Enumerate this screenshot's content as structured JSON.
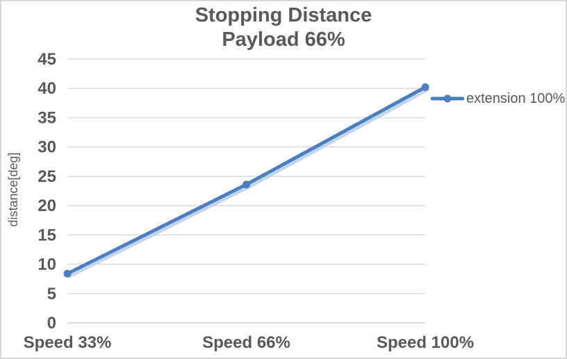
{
  "chart": {
    "title_line1": "Stopping Distance",
    "title_line2": "Payload 66%",
    "y_axis_title": "distance[deg]",
    "legend": {
      "label": "extension 100%"
    }
  },
  "chart_data": {
    "type": "line",
    "title": "Stopping Distance Payload 66%",
    "categories": [
      "Speed 33%",
      "Speed 66%",
      "Speed 100%"
    ],
    "series": [
      {
        "name": "extension 100%",
        "values": [
          8.4,
          23.6,
          40.2
        ]
      }
    ],
    "xlabel": "",
    "ylabel": "distance[deg]",
    "ylim": [
      0,
      45
    ],
    "ytick_step": 5,
    "grid": true,
    "legend_position": "right",
    "marker": "circle"
  },
  "colors": {
    "series_blue": "#4a7ebe",
    "series_shadow": "#bdd0e8",
    "gridline": "#d9d9d9",
    "text": "#595959",
    "border": "#d8d8d8"
  }
}
